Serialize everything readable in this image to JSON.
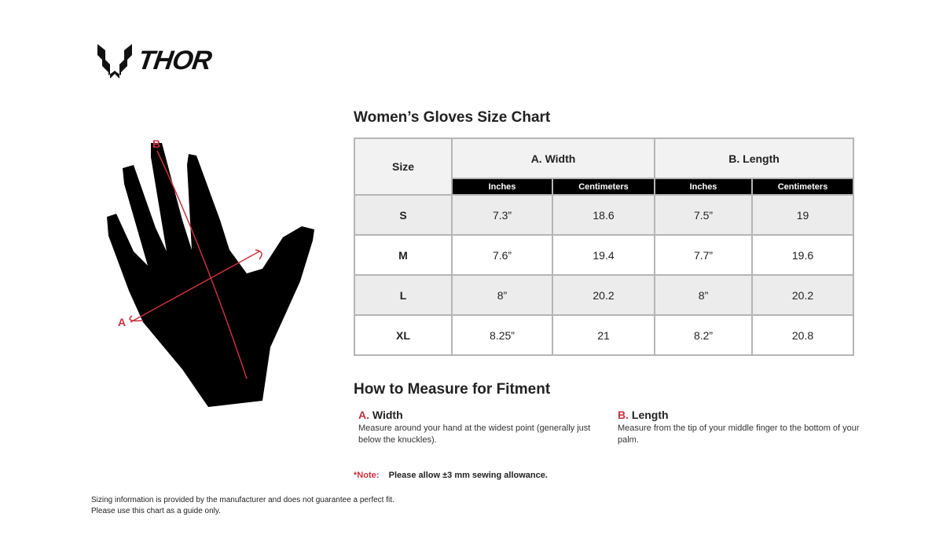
{
  "brand": {
    "name": "THOR"
  },
  "title": "Women’s Gloves Size Chart",
  "diagram": {
    "label_a": "A",
    "label_b": "B",
    "accent_color": "#c8323c"
  },
  "table": {
    "size_header": "Size",
    "groups": [
      "A. Width",
      "B. Length"
    ],
    "units": [
      "Inches",
      "Centimeters",
      "Inches",
      "Centimeters"
    ],
    "rows": [
      {
        "size": "S",
        "values": [
          "7.3”",
          "18.6",
          "7.5”",
          "19"
        ]
      },
      {
        "size": "M",
        "values": [
          "7.6”",
          "19.4",
          "7.7”",
          "19.6"
        ]
      },
      {
        "size": "L",
        "values": [
          "8”",
          "20.2",
          "8”",
          "20.2"
        ]
      },
      {
        "size": "XL",
        "values": [
          "8.25”",
          "21",
          "8.2”",
          "20.8"
        ]
      }
    ]
  },
  "howto": {
    "title": "How to Measure for Fitment",
    "width": {
      "letter": "A.",
      "label": "Width",
      "text": "Measure around your hand at the widest point (generally just below the knuckles)."
    },
    "length": {
      "letter": "B.",
      "label": "Length",
      "text": "Measure from the tip of your middle finger to the bottom of your palm."
    }
  },
  "note": {
    "label": "*Note:",
    "text": "Please allow ±3 mm sewing allowance."
  },
  "disclaimer": [
    "Sizing information is provided by the manufacturer and does not guarantee a perfect fit.",
    "Please use this chart as a guide only."
  ]
}
